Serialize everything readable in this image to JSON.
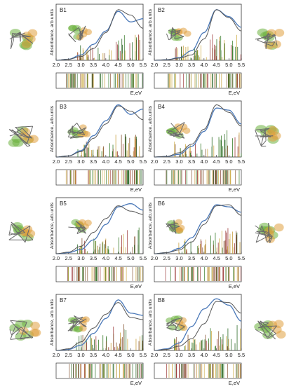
{
  "colors": {
    "curve": "#4a78b8",
    "curve_dark": "#555555",
    "frame": "#333333",
    "stick_palette": [
      "#3a7d2c",
      "#c8a040",
      "#8a5a3a",
      "#d0b050",
      "#2f6b2a",
      "#a04040"
    ],
    "molecule_green": "#6db33f",
    "molecule_orange": "#e0a040"
  },
  "shared_axis": {
    "ylabel": "Absorbance, arb.units",
    "xlabel": "E,eV",
    "xticks": [
      "2.0",
      "2.5",
      "3.0",
      "3.5",
      "4.0",
      "4.5",
      "5.0",
      "5.5"
    ],
    "xlim": [
      2.0,
      5.5
    ]
  },
  "chart_data": [
    {
      "id": "B1",
      "type": "line",
      "x": [
        2.0,
        2.5,
        3.0,
        3.5,
        4.0,
        4.5,
        5.0,
        5.5
      ],
      "series": [
        {
          "values": [
            0.0,
            0.02,
            0.1,
            0.3,
            0.55,
            0.92,
            0.72,
            0.78
          ]
        },
        {
          "values": [
            0.0,
            0.02,
            0.07,
            0.22,
            0.52,
            0.95,
            0.85,
            0.6
          ]
        }
      ],
      "peak_ev": 4.65
    },
    {
      "id": "B2",
      "type": "line",
      "x": [
        2.0,
        2.5,
        3.0,
        3.5,
        4.0,
        4.5,
        5.0,
        5.5
      ],
      "series": [
        {
          "values": [
            0.0,
            0.01,
            0.05,
            0.18,
            0.52,
            0.95,
            0.82,
            0.62
          ]
        },
        {
          "values": [
            0.0,
            0.01,
            0.04,
            0.1,
            0.4,
            0.95,
            0.8,
            0.55
          ]
        }
      ],
      "peak_ev": 4.75
    },
    {
      "id": "B3",
      "type": "line",
      "x": [
        2.0,
        2.5,
        3.0,
        3.5,
        4.0,
        4.5,
        5.0,
        5.5
      ],
      "series": [
        {
          "values": [
            0.0,
            0.02,
            0.12,
            0.4,
            0.68,
            0.98,
            0.8,
            0.9
          ]
        },
        {
          "values": [
            0.0,
            0.02,
            0.1,
            0.35,
            0.62,
            0.96,
            0.86,
            0.7
          ]
        }
      ],
      "peak_ev": 4.6
    },
    {
      "id": "B4",
      "type": "line",
      "x": [
        2.0,
        2.5,
        3.0,
        3.5,
        4.0,
        4.5,
        5.0,
        5.5
      ],
      "series": [
        {
          "values": [
            0.0,
            0.01,
            0.05,
            0.2,
            0.48,
            0.92,
            0.88,
            0.62
          ]
        },
        {
          "values": [
            0.0,
            0.01,
            0.08,
            0.24,
            0.52,
            0.98,
            0.84,
            0.58
          ]
        }
      ],
      "peak_ev": 4.85
    },
    {
      "id": "B5",
      "type": "line",
      "x": [
        2.0,
        2.5,
        3.0,
        3.5,
        4.0,
        4.5,
        5.0,
        5.5
      ],
      "series": [
        {
          "values": [
            0.0,
            0.02,
            0.08,
            0.26,
            0.55,
            0.88,
            0.94,
            0.82
          ]
        },
        {
          "values": [
            0.0,
            0.03,
            0.14,
            0.4,
            0.66,
            0.9,
            0.8,
            0.74
          ]
        }
      ],
      "peak_ev": 4.7
    },
    {
      "id": "B6",
      "type": "line",
      "x": [
        2.0,
        2.5,
        3.0,
        3.5,
        4.0,
        4.5,
        5.0,
        5.5
      ],
      "series": [
        {
          "values": [
            0.0,
            0.02,
            0.1,
            0.3,
            0.62,
            0.92,
            0.88,
            0.78
          ]
        },
        {
          "values": [
            0.0,
            0.02,
            0.07,
            0.22,
            0.55,
            0.9,
            0.92,
            0.72
          ]
        }
      ],
      "peak_ev": 4.8
    },
    {
      "id": "B7",
      "type": "line",
      "x": [
        2.0,
        2.5,
        3.0,
        3.5,
        4.0,
        4.5,
        5.0,
        5.5
      ],
      "series": [
        {
          "values": [
            0.0,
            0.02,
            0.1,
            0.32,
            0.6,
            0.95,
            0.7,
            0.66
          ]
        },
        {
          "values": [
            0.0,
            0.03,
            0.16,
            0.42,
            0.68,
            0.9,
            0.62,
            0.58
          ]
        }
      ],
      "peak_ev": 4.6
    },
    {
      "id": "B8",
      "type": "line",
      "x": [
        2.0,
        2.5,
        3.0,
        3.5,
        4.0,
        4.5,
        5.0,
        5.5
      ],
      "series": [
        {
          "values": [
            0.0,
            0.03,
            0.14,
            0.45,
            0.78,
            0.97,
            0.85,
            0.55
          ]
        },
        {
          "values": [
            0.0,
            0.02,
            0.08,
            0.22,
            0.5,
            0.92,
            0.9,
            0.7
          ]
        }
      ],
      "peak_ev": 4.5
    }
  ]
}
